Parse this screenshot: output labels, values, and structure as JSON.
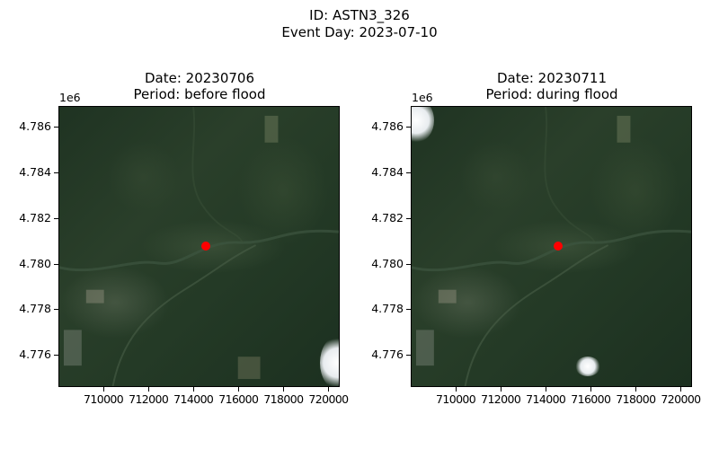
{
  "figure": {
    "title_line1": "ID: ASTN3_326",
    "title_line2": "Event Day: 2023-07-10"
  },
  "panels": [
    {
      "title_line1": "Date: 20230706",
      "title_line2": "Period: before flood",
      "y_offset_label": "1e6",
      "y_ticks": [
        "4.786",
        "4.784",
        "4.782",
        "4.780",
        "4.778",
        "4.776"
      ],
      "x_ticks": [
        "710000",
        "712000",
        "714000",
        "716000",
        "718000",
        "720000"
      ],
      "marker": {
        "x": 714500,
        "y": 4780800,
        "color": "#ff0000"
      }
    },
    {
      "title_line1": "Date: 20230711",
      "title_line2": "Period: during flood",
      "y_offset_label": "1e6",
      "y_ticks": [
        "4.786",
        "4.784",
        "4.782",
        "4.780",
        "4.778",
        "4.776"
      ],
      "x_ticks": [
        "710000",
        "712000",
        "714000",
        "716000",
        "718000",
        "720000"
      ],
      "marker": {
        "x": 714500,
        "y": 4780800,
        "color": "#ff0000"
      }
    }
  ]
}
